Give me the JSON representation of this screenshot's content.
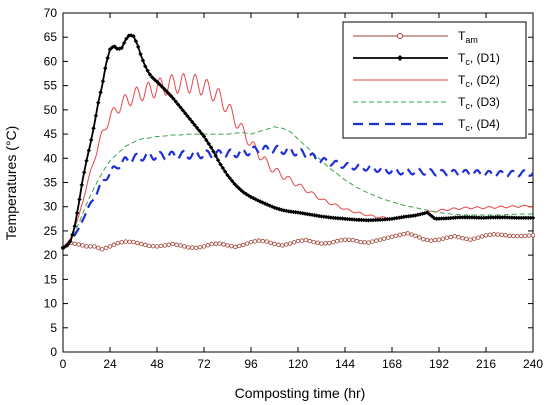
{
  "chart_data": {
    "type": "line",
    "xlabel": "Composting time (hr)",
    "ylabel": "Temperatures (°C)",
    "xlim": [
      0,
      240
    ],
    "ylim": [
      0,
      70
    ],
    "x_ticks": [
      0,
      24,
      48,
      72,
      96,
      120,
      144,
      168,
      192,
      216,
      240
    ],
    "y_ticks": [
      0,
      5,
      10,
      15,
      20,
      25,
      30,
      35,
      40,
      45,
      50,
      55,
      60,
      65,
      70
    ],
    "grid": false,
    "legend_position": "top-right",
    "series": [
      {
        "name": "Tam",
        "label_main": "T",
        "label_sub": "am",
        "label_tail": "",
        "color": "#a0453a",
        "style": "solid-open-circle",
        "x": [
          0,
          4,
          8,
          12,
          16,
          20,
          24,
          28,
          32,
          36,
          40,
          44,
          48,
          52,
          56,
          60,
          64,
          68,
          72,
          76,
          80,
          84,
          88,
          92,
          96,
          100,
          104,
          108,
          112,
          116,
          120,
          124,
          128,
          132,
          136,
          140,
          144,
          148,
          152,
          156,
          160,
          164,
          168,
          172,
          176,
          180,
          184,
          188,
          192,
          196,
          200,
          204,
          208,
          212,
          216,
          220,
          224,
          228,
          232,
          236,
          240
        ],
        "y": [
          21.5,
          22.5,
          22.2,
          21.8,
          21.8,
          21.2,
          21.8,
          22.5,
          22.8,
          22.7,
          22.3,
          21.9,
          21.8,
          22.0,
          22.3,
          22.0,
          21.6,
          21.5,
          21.8,
          22.3,
          22.4,
          22.0,
          21.7,
          22.1,
          22.7,
          23.0,
          22.8,
          22.3,
          22.0,
          22.4,
          22.9,
          23.1,
          22.7,
          22.4,
          22.5,
          22.9,
          23.2,
          23.1,
          22.7,
          22.6,
          23.0,
          23.4,
          23.8,
          24.2,
          24.5,
          24.0,
          23.3,
          23.0,
          23.2,
          23.6,
          23.9,
          23.5,
          23.2,
          23.6,
          24.1,
          24.3,
          24.2,
          24.0,
          23.9,
          24.0,
          24.1
        ]
      },
      {
        "name": "Tc, (D1)",
        "label_main": "T",
        "label_sub": "c",
        "label_tail": ", (D1)",
        "color": "#000000",
        "style": "solid-filled-diamond",
        "x": [
          0,
          2,
          4,
          6,
          8,
          10,
          12,
          14,
          16,
          18,
          20,
          22,
          24,
          26,
          28,
          30,
          32,
          34,
          36,
          38,
          40,
          42,
          44,
          46,
          48,
          52,
          56,
          60,
          64,
          68,
          72,
          76,
          80,
          84,
          88,
          92,
          96,
          100,
          104,
          108,
          112,
          116,
          120,
          126,
          132,
          138,
          144,
          150,
          156,
          162,
          168,
          174,
          180,
          186,
          190,
          196,
          202,
          208,
          214,
          220,
          226,
          232,
          240
        ],
        "y": [
          21.5,
          22.0,
          23.0,
          26.0,
          30.5,
          35.5,
          39.5,
          43.0,
          47.0,
          51.5,
          55.0,
          59.5,
          62.5,
          63.2,
          62.5,
          62.8,
          64.5,
          65.5,
          65.2,
          63.5,
          61.0,
          59.0,
          57.5,
          56.5,
          55.8,
          54.2,
          52.5,
          50.5,
          48.5,
          46.5,
          44.5,
          42.0,
          39.0,
          36.5,
          34.5,
          33.0,
          32.0,
          31.2,
          30.5,
          29.8,
          29.3,
          29.0,
          28.8,
          28.4,
          28.0,
          27.7,
          27.5,
          27.3,
          27.2,
          27.3,
          27.5,
          27.9,
          28.2,
          28.8,
          27.5,
          27.6,
          27.8,
          27.8,
          27.7,
          27.8,
          27.8,
          27.7,
          27.7
        ]
      },
      {
        "name": "Tc, (D2)",
        "label_main": "T",
        "label_sub": "c",
        "label_tail": ", (D2)",
        "color": "#e8454b",
        "style": "solid-thin-oscillating",
        "x": [
          0,
          4,
          8,
          12,
          16,
          20,
          24,
          28,
          32,
          36,
          40,
          44,
          48,
          52,
          56,
          60,
          64,
          68,
          72,
          76,
          80,
          84,
          88,
          92,
          96,
          100,
          104,
          108,
          112,
          116,
          120,
          126,
          132,
          138,
          144,
          150,
          156,
          162,
          168,
          174,
          180,
          186,
          192,
          198,
          204,
          210,
          216,
          222,
          228,
          234,
          240
        ],
        "y": [
          21.5,
          23.5,
          28.0,
          34.0,
          40.0,
          45.0,
          48.5,
          50.5,
          51.8,
          52.8,
          53.5,
          54.0,
          54.5,
          55.0,
          55.3,
          55.5,
          55.5,
          55.3,
          54.8,
          53.8,
          52.5,
          50.5,
          48.0,
          45.5,
          43.0,
          41.0,
          39.0,
          37.5,
          36.5,
          35.5,
          34.5,
          33.0,
          31.5,
          30.5,
          29.5,
          28.8,
          28.2,
          27.8,
          27.5,
          27.8,
          28.2,
          28.8,
          29.2,
          29.5,
          29.7,
          29.8,
          29.8,
          29.9,
          30.0,
          30.1,
          30.2
        ],
        "osc_amp": [
          0,
          0,
          0,
          0.3,
          0.6,
          0.8,
          1.0,
          1.3,
          1.5,
          1.6,
          1.7,
          1.8,
          1.9,
          2.0,
          2.0,
          2.0,
          2.0,
          2.0,
          1.9,
          1.8,
          1.7,
          1.5,
          1.4,
          1.2,
          1.1,
          1.0,
          0.9,
          0.8,
          0.7,
          0.6,
          0.5,
          0.4,
          0.3,
          0.3,
          0.2,
          0.2,
          0.2,
          0.2,
          0.2,
          0.2,
          0.2,
          0.2,
          0.2,
          0.2,
          0.2,
          0.2,
          0.2,
          0.2,
          0.2,
          0.2,
          0.2
        ]
      },
      {
        "name": "Tc, (D3)",
        "label_main": "T",
        "label_sub": "c",
        "label_tail": ", (D3)",
        "color": "#3fa34d",
        "style": "dashed-thin",
        "x": [
          0,
          4,
          8,
          12,
          16,
          20,
          24,
          28,
          32,
          36,
          40,
          44,
          48,
          52,
          56,
          60,
          64,
          68,
          72,
          76,
          80,
          84,
          88,
          92,
          96,
          100,
          104,
          108,
          112,
          116,
          120,
          124,
          128,
          132,
          136,
          140,
          144,
          150,
          156,
          162,
          168,
          174,
          180,
          186,
          192,
          198,
          204,
          210,
          216,
          222,
          228,
          234,
          240
        ],
        "y": [
          21.5,
          23.0,
          26.5,
          30.5,
          34.0,
          37.0,
          39.5,
          41.0,
          42.5,
          43.3,
          44.0,
          44.2,
          44.5,
          44.6,
          44.8,
          44.8,
          45.0,
          45.0,
          45.0,
          45.0,
          45.0,
          45.0,
          45.2,
          45.3,
          45.0,
          45.5,
          46.0,
          46.5,
          46.2,
          45.5,
          44.0,
          42.5,
          41.0,
          39.5,
          38.0,
          36.8,
          35.5,
          34.0,
          32.8,
          31.8,
          31.0,
          30.3,
          29.8,
          29.3,
          28.8,
          28.5,
          28.3,
          28.3,
          28.3,
          28.3,
          28.4,
          28.5,
          28.5
        ]
      },
      {
        "name": "Tc, (D4)",
        "label_main": "T",
        "label_sub": "c",
        "label_tail": ", (D4)",
        "color": "#1f2fd6",
        "style": "long-dashed-thick",
        "x": [
          0,
          4,
          8,
          12,
          16,
          20,
          24,
          28,
          32,
          36,
          40,
          44,
          48,
          52,
          56,
          60,
          64,
          68,
          72,
          76,
          80,
          84,
          88,
          92,
          96,
          100,
          104,
          108,
          112,
          116,
          120,
          126,
          132,
          138,
          144,
          150,
          156,
          162,
          168,
          174,
          180,
          186,
          192,
          198,
          204,
          210,
          216,
          222,
          228,
          234,
          240
        ],
        "y": [
          21.5,
          22.8,
          25.5,
          29.0,
          32.0,
          35.0,
          37.0,
          38.5,
          39.5,
          40.0,
          40.3,
          40.5,
          40.5,
          40.5,
          40.6,
          40.7,
          40.7,
          40.8,
          40.8,
          40.8,
          40.9,
          41.0,
          41.0,
          41.2,
          41.5,
          41.8,
          41.8,
          41.8,
          41.7,
          41.5,
          41.3,
          40.5,
          39.5,
          39.0,
          38.5,
          38.2,
          38.0,
          37.7,
          37.4,
          37.2,
          37.3,
          37.2,
          37.0,
          37.0,
          37.0,
          37.0,
          36.8,
          36.8,
          36.8,
          36.9,
          37.0
        ],
        "osc_amp": [
          0,
          0,
          0,
          0.2,
          0.4,
          0.5,
          0.6,
          0.7,
          0.8,
          0.8,
          0.8,
          0.8,
          0.8,
          0.8,
          0.8,
          0.8,
          0.8,
          0.8,
          0.8,
          0.8,
          0.8,
          0.8,
          0.8,
          0.8,
          0.8,
          0.8,
          0.8,
          0.8,
          0.8,
          0.8,
          0.8,
          0.7,
          0.7,
          0.6,
          0.6,
          0.6,
          0.6,
          0.6,
          0.6,
          0.6,
          0.6,
          0.6,
          0.6,
          0.6,
          0.6,
          0.6,
          0.6,
          0.6,
          0.6,
          0.6,
          0.6
        ]
      }
    ]
  }
}
